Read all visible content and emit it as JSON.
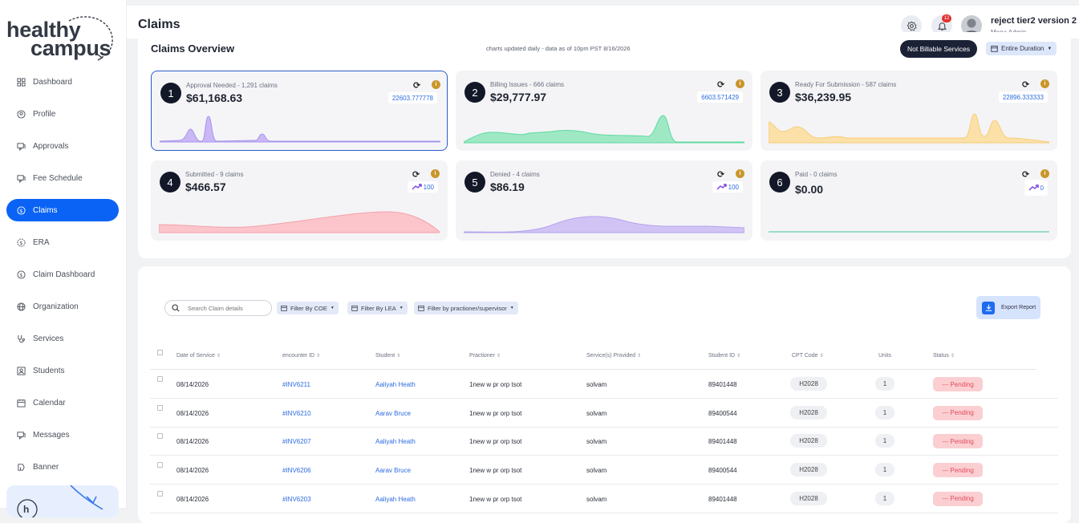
{
  "app": {
    "logo_top": "healthy",
    "logo_bottom": "campus",
    "page_title": "Claims"
  },
  "sidebar": {
    "items": [
      {
        "label": "Dashboard",
        "icon": "grid-icon"
      },
      {
        "label": "Profile",
        "icon": "user-icon"
      },
      {
        "label": "Approvals",
        "icon": "chat-icon"
      },
      {
        "label": "Fee Schedule",
        "icon": "chat-icon"
      },
      {
        "label": "Claims",
        "icon": "dollar-icon",
        "active": true
      },
      {
        "label": "ERA",
        "icon": "gear-dollar-icon"
      },
      {
        "label": "Claim Dashboard",
        "icon": "dollar-icon"
      },
      {
        "label": "Organization",
        "icon": "globe-icon"
      },
      {
        "label": "Services",
        "icon": "stethoscope-icon"
      },
      {
        "label": "Students",
        "icon": "student-icon"
      },
      {
        "label": "Calendar",
        "icon": "calendar-icon"
      },
      {
        "label": "Messages",
        "icon": "chat-icon"
      },
      {
        "label": "Banner",
        "icon": "banner-icon"
      }
    ]
  },
  "header": {
    "notification_count": "12",
    "user_name": "reject tier2 version 2",
    "user_role": "Mega Admin"
  },
  "overview": {
    "title": "Claims Overview",
    "note": "charts updated daily - data as of 10pm PST 8/16/2026",
    "not_billable_label": "Not Billable Services",
    "duration_label": "Entire Duration",
    "accent_color": "#0a63f5",
    "cards": [
      {
        "num": "1",
        "label": "Approval Needed - 1,291 claims",
        "value": "$61,168.63",
        "badge": "22603.777778",
        "color": "#c9b8f5",
        "stroke": "#a895ee"
      },
      {
        "num": "2",
        "label": "Billing Issues - 666 claims",
        "value": "$29,777.97",
        "badge": "6603.571429",
        "color": "#9ee9c4",
        "stroke": "#5fd9a1"
      },
      {
        "num": "3",
        "label": "Ready For Submission - 587 claims",
        "value": "$36,239.95",
        "badge": "22896.333333",
        "color": "#fbe1a8",
        "stroke": "#f6cd79"
      },
      {
        "num": "4",
        "label": "Submitted - 9 claims",
        "value": "$466.57",
        "badge": "100",
        "trend": true,
        "color": "#fbc5cb",
        "stroke": "#f5a0ab"
      },
      {
        "num": "5",
        "label": "Denied - 4 claims",
        "value": "$86.19",
        "badge": "100",
        "trend": true,
        "color": "#d1c4f5",
        "stroke": "#b4a2ee"
      },
      {
        "num": "6",
        "label": "Paid - 0 claims",
        "value": "$0.00",
        "badge": "0",
        "trend": true,
        "color": "#bfeee0",
        "stroke": "#45c49a"
      }
    ]
  },
  "table": {
    "search_placeholder": "Search Claim details",
    "filters": [
      "Filter By COE",
      "Filter By LEA",
      "Filter by practioner/supervisor"
    ],
    "export_label": "Export Report",
    "columns": [
      "Date of Service",
      "encounter ID",
      "Student",
      "Practioner",
      "Service(s) Provided",
      "Student ID",
      "CPT Code",
      "Units",
      "Status"
    ],
    "rows": [
      {
        "date": "08/14/2026",
        "encounter": "#INV6211",
        "student": "Aaliyah Heath",
        "practioner": "1new w pr orp tsot",
        "service": "solvam",
        "student_id": "89401448",
        "cpt": "H2028",
        "units": "1",
        "status": "--- Pending"
      },
      {
        "date": "08/14/2026",
        "encounter": "#INV6210",
        "student": "Aarav Bruce",
        "practioner": "1new w pr orp tsot",
        "service": "solvam",
        "student_id": "89400544",
        "cpt": "H2028",
        "units": "1",
        "status": "--- Pending"
      },
      {
        "date": "08/14/2026",
        "encounter": "#INV6207",
        "student": "Aaliyah Heath",
        "practioner": "1new w pr orp tsot",
        "service": "solvam",
        "student_id": "89401448",
        "cpt": "H2028",
        "units": "1",
        "status": "--- Pending"
      },
      {
        "date": "08/14/2026",
        "encounter": "#INV6206",
        "student": "Aarav Bruce",
        "practioner": "1new w pr orp tsot",
        "service": "solvam",
        "student_id": "89400544",
        "cpt": "H2028",
        "units": "1",
        "status": "--- Pending"
      },
      {
        "date": "08/14/2026",
        "encounter": "#INV6203",
        "student": "Aaliyah Heath",
        "practioner": "1new w pr orp tsot",
        "service": "solvam",
        "student_id": "89401448",
        "cpt": "H2028",
        "units": "1",
        "status": "--- Pending"
      }
    ]
  }
}
